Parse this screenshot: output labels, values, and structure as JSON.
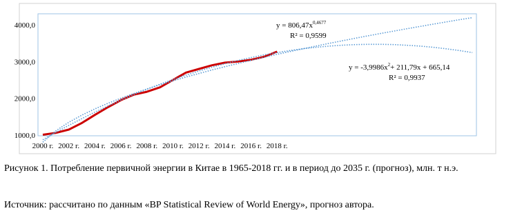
{
  "chart_data": {
    "type": "line",
    "categories": [
      "2000 г.",
      null,
      "2002 г.",
      null,
      "2004 г.",
      null,
      "2006 г.",
      null,
      "2008 г.",
      null,
      "2010 г.",
      null,
      "2012 г.",
      null,
      "2014 г.",
      null,
      "2016 г.",
      null,
      "2018 г.",
      null,
      null,
      null,
      null,
      null,
      null,
      null,
      null,
      null,
      null,
      null,
      null,
      null,
      null,
      null
    ],
    "series": [
      {
        "color": "#cc0000",
        "style": "solid",
        "values": [
          1010,
          1060,
          1150,
          1330,
          1550,
          1760,
          1950,
          2100,
          2180,
          2300,
          2500,
          2700,
          2800,
          2900,
          2970,
          3000,
          3050,
          3130,
          3270,
          null,
          null,
          null,
          null,
          null,
          null,
          null,
          null,
          null,
          null,
          null,
          null,
          null,
          null,
          null
        ]
      },
      {
        "color": "#5b9bd5",
        "style": "dotted",
        "values": [
          806,
          1115,
          1348,
          1543,
          1712,
          1864,
          2004,
          2133,
          2254,
          2368,
          2475,
          2578,
          2677,
          2771,
          2862,
          2949,
          3035,
          3116,
          3197,
          3274,
          3349,
          3423,
          3495,
          3565,
          3634,
          3702,
          3767,
          3831,
          3895,
          3957,
          4018,
          4079,
          4138,
          4195
        ]
      },
      {
        "color": "#5b9bd5",
        "style": "dotted",
        "values": [
          873,
          1073,
          1265,
          1448,
          1624,
          1792,
          1952,
          2104,
          2247,
          2383,
          2511,
          2631,
          2743,
          2847,
          2943,
          3030,
          3110,
          3182,
          3245,
          3301,
          3349,
          3389,
          3421,
          3445,
          3461,
          3469,
          3469,
          3461,
          3444,
          3420,
          3388,
          3348,
          3300,
          3244
        ]
      }
    ],
    "ylim": [
      1000,
      4300
    ],
    "yticks": [
      {
        "value": 1000,
        "label": "1000,0"
      },
      {
        "value": 2000,
        "label": "2000,0"
      },
      {
        "value": 3000,
        "label": "3000,0"
      },
      {
        "value": 4000,
        "label": "4000,0"
      }
    ],
    "annotations": [
      {
        "text": "y = 806,47x",
        "sup": "0,4677"
      },
      {
        "text": "R² = 0,9599"
      },
      {
        "text": "y = -3,9986x",
        "sup": "2",
        "rest": "+ 211,79x + 665,14"
      },
      {
        "text": "R² = 0,9937"
      }
    ]
  },
  "caption": "Рисунок 1. Потребление первичной энергии в Китае в 1965-2018 гг. и в период до 2035 г. (прогноз), млн. т н.э.",
  "source": "Источник: рассчитано по данным «BP Statistical Review of World Energy», прогноз автора."
}
